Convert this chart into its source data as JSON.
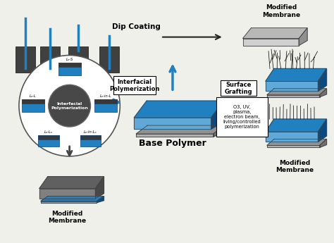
{
  "bg_color": "#f0f0eb",
  "dark_gray": "#3a3a3a",
  "blue": "#2080c0",
  "mid_blue": "#1a70b0",
  "dark_blue": "#0a4a80",
  "light_blue": "#60a8d8",
  "gray": "#888888",
  "light_gray": "#c0c0c0",
  "text_color": "#000000",
  "box_bg": "#ffffff",
  "dip_coating_label": "Dip Coating",
  "interfacial_label": "Interfacial\nPolymerization",
  "surface_grafting_label": "Surface\nGrafting",
  "base_polymer_label": "Base Polymer",
  "center_label": "Interfacial\nPolymerization",
  "mod_mem_top_right": "Modified\nMembrane",
  "mod_mem_bottom_left": "Modified\nMembrane",
  "mod_mem_bottom_right": "Modified\nMembrane",
  "o3_label": "O3, UV,\nplasma,\nelectron beam,\nliving/controlled\npolymerization",
  "lbl_top": "Lₒ-S",
  "lbl_left": "Lₒ-L",
  "lbl_right": "Lₒ-in-L",
  "lbl_botleft": "Lₒ-Lₒ",
  "lbl_botright": "Lₒ-in-Lₒ"
}
